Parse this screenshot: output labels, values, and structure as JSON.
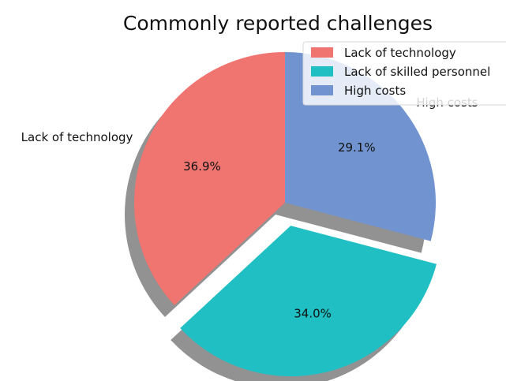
{
  "chart_data": {
    "type": "pie",
    "title": "Commonly reported challenges",
    "categories": [
      "Lack of technology",
      "Lack of skilled personnel",
      "High costs"
    ],
    "values": [
      36.9,
      34.0,
      29.1
    ],
    "value_labels": [
      "36.9%",
      "34.0%",
      "29.1%"
    ],
    "colors": [
      "#f07470",
      "#1fbfc3",
      "#7193cf"
    ],
    "exploded": [
      false,
      true,
      false
    ],
    "shadow": true,
    "legend": {
      "placement": "top-right",
      "entries": [
        "Lack of technology",
        "Lack of skilled personnel",
        "High costs"
      ]
    }
  }
}
